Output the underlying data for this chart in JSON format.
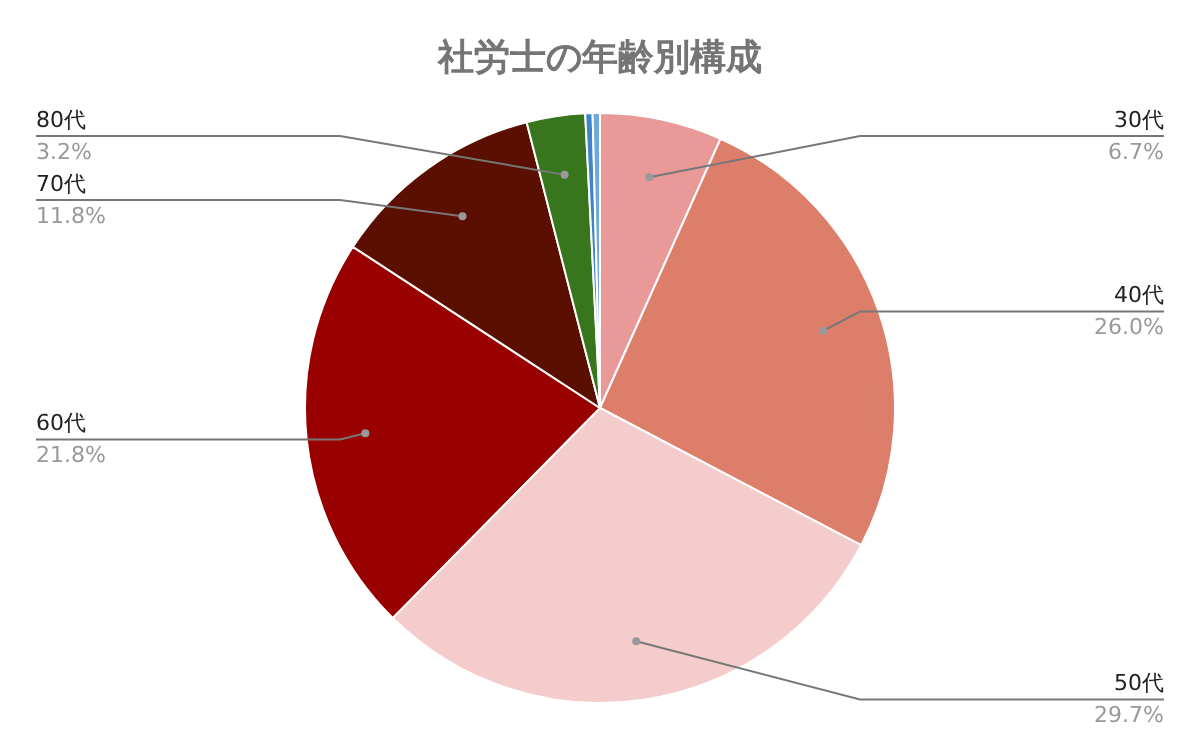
{
  "chart_data": {
    "type": "pie",
    "title": "社労士の年齢別構成",
    "categories": [
      "30代",
      "40代",
      "50代",
      "60代",
      "70代",
      "80代",
      null,
      null
    ],
    "values": [
      6.7,
      26.0,
      29.7,
      21.8,
      11.8,
      3.2,
      0.4,
      0.4
    ],
    "colors": [
      "#ea9999",
      "#dd7e6b",
      "#f4cccc",
      "#990000",
      "#5b0f00",
      "#38761d",
      "#3d85c6",
      "#6fa8dc"
    ],
    "value_labels": [
      "6.7%",
      "26.0%",
      "29.7%",
      "21.8%",
      "11.8%",
      "3.2%",
      null,
      null
    ],
    "legend": false
  }
}
